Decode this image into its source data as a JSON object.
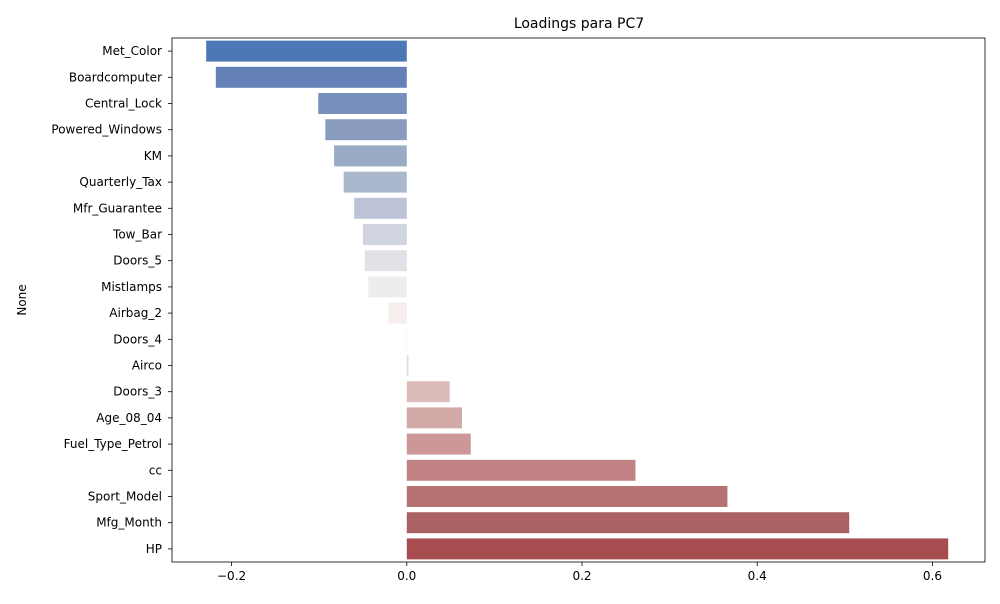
{
  "chart_data": {
    "type": "bar",
    "orientation": "horizontal",
    "title": "Loadings para PC7",
    "xlabel": "",
    "ylabel": "None",
    "xlim": [
      -0.268,
      0.66
    ],
    "xticks": [
      -0.2,
      0.0,
      0.2,
      0.4,
      0.6
    ],
    "xtick_labels": [
      "−0.2",
      "0.0",
      "0.2",
      "0.4",
      "0.6"
    ],
    "grid": false,
    "categories": [
      "Met_Color",
      "Boardcomputer",
      "Central_Lock",
      "Powered_Windows",
      "KM",
      "Quarterly_Tax",
      "Mfr_Guarantee",
      "Tow_Bar",
      "Doors_5",
      "Mistlamps",
      "Airbag_2",
      "Doors_4",
      "Airco",
      "Doors_3",
      "Age_08_04",
      "Fuel_Type_Petrol",
      "cc",
      "Sport_Model",
      "Mfg_Month",
      "HP"
    ],
    "values": [
      -0.229,
      -0.218,
      -0.101,
      -0.093,
      -0.083,
      -0.072,
      -0.06,
      -0.05,
      -0.048,
      -0.044,
      -0.021,
      -0.001,
      0.002,
      0.049,
      0.063,
      0.073,
      0.261,
      0.366,
      0.505,
      0.618
    ],
    "colors": [
      "#4c78b5",
      "#6381b6",
      "#778fba",
      "#899cbd",
      "#9aabc5",
      "#abb7cd",
      "#bcc3d6",
      "#cfd4de",
      "#e2e1e7",
      "#efecee",
      "#f6eded",
      "#f9f3f3",
      "#ebd6d6",
      "#dcbcbb",
      "#d3a9a8",
      "#cb9797",
      "#c08283",
      "#b67273",
      "#aa6162",
      "#a74c4f"
    ]
  }
}
